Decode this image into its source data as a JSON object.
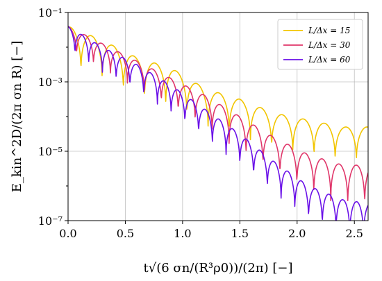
{
  "chart_data": {
    "type": "line",
    "xlabel": "t√(6 σn/(R³ρ0))/(2π) [−]",
    "ylabel": "E_kin^2D/(2π σn R) [−]",
    "xlim": [
      0,
      2.62
    ],
    "ylim_log10": [
      -7,
      -1
    ],
    "yscale": "log",
    "grid": true,
    "legend_position": "top-right",
    "x_ticks": [
      0.0,
      0.5,
      1.0,
      1.5,
      2.0,
      2.5
    ],
    "x_tick_labels": [
      "0.0",
      "0.5",
      "1.0",
      "1.5",
      "2.0",
      "2.5"
    ],
    "y_ticks_log10": [
      -7,
      -5,
      -3,
      -1
    ],
    "y_tick_labels": [
      "10⁻⁷",
      "10⁻⁵",
      "10⁻³",
      "10⁻¹"
    ],
    "series": [
      {
        "name": "L/Δx = 15",
        "color": "#f2c500",
        "oscillation": {
          "period": 0.185,
          "phase": 0.02,
          "amplitude_log10": [
            1.3,
            1.1
          ]
        },
        "envelope_log10": [
          [
            0.0,
            -1.4
          ],
          [
            0.3,
            -1.8
          ],
          [
            0.6,
            -2.3
          ],
          [
            0.9,
            -2.6
          ],
          [
            1.2,
            -3.2
          ],
          [
            1.5,
            -3.5
          ],
          [
            1.8,
            -3.9
          ],
          [
            2.1,
            -4.1
          ],
          [
            2.4,
            -4.3
          ],
          [
            2.62,
            -4.3
          ]
        ]
      },
      {
        "name": "L/Δx = 30",
        "color": "#e0366a",
        "oscillation": {
          "period": 0.148,
          "phase": 0.0,
          "amplitude_log10": [
            0.8,
            1.3
          ]
        },
        "envelope_log10": [
          [
            0.0,
            -1.4
          ],
          [
            0.3,
            -1.9
          ],
          [
            0.6,
            -2.4
          ],
          [
            0.9,
            -2.9
          ],
          [
            1.2,
            -3.4
          ],
          [
            1.5,
            -4.0
          ],
          [
            1.8,
            -4.6
          ],
          [
            2.1,
            -5.1
          ],
          [
            2.4,
            -5.4
          ],
          [
            2.62,
            -5.4
          ]
        ]
      },
      {
        "name": "L/Δx = 60",
        "color": "#6a11e8",
        "oscillation": {
          "period": 0.12,
          "phase": 0.0,
          "amplitude_log10": [
            0.8,
            1.2
          ]
        },
        "envelope_log10": [
          [
            0.0,
            -1.4
          ],
          [
            0.3,
            -2.0
          ],
          [
            0.6,
            -2.5
          ],
          [
            0.9,
            -3.1
          ],
          [
            1.2,
            -3.8
          ],
          [
            1.5,
            -4.5
          ],
          [
            1.8,
            -5.3
          ],
          [
            2.1,
            -6.0
          ],
          [
            2.4,
            -6.4
          ],
          [
            2.62,
            -6.5
          ]
        ]
      }
    ]
  }
}
